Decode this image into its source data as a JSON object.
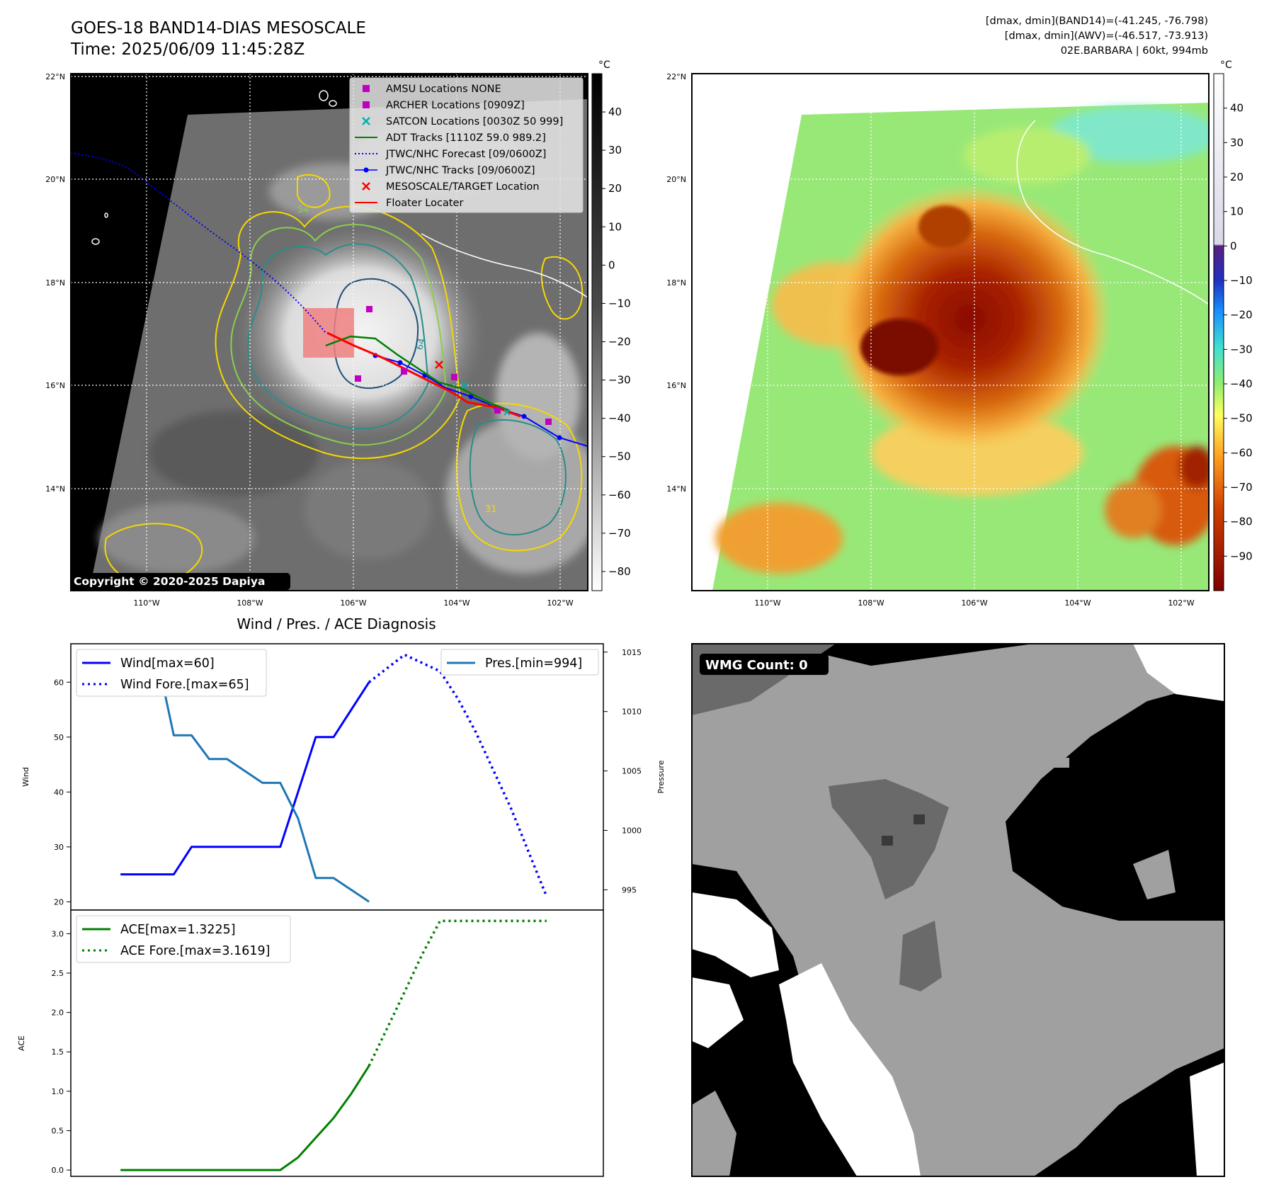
{
  "header": {
    "title_line1": "GOES-18 BAND14-DIAS MESOSCALE",
    "title_line2": "Time: 2025/06/09 11:45:28Z",
    "info_line1": "[dmax, dmin](BAND14)=(-41.245, -76.798)",
    "info_line2": "[dmax, dmin](AWV)=(-46.517, -73.913)",
    "info_line3": "02E.BARBARA | 60kt, 994mb"
  },
  "map_axes": {
    "lat_labels": [
      "22°N",
      "20°N",
      "18°N",
      "16°N",
      "14°N"
    ],
    "lon_labels": [
      "110°W",
      "108°W",
      "106°W",
      "104°W",
      "102°W"
    ],
    "lat_range": [
      12,
      22
    ],
    "lon_range": [
      -111.5,
      -101.5
    ]
  },
  "ir_panel": {
    "copyright": "Copyright © 2020-2025 Dapiya",
    "colorbar_unit": "°C",
    "colorbar_ticks": [
      "40",
      "30",
      "20",
      "10",
      "0",
      "−10",
      "−20",
      "−30",
      "−40",
      "−50",
      "−60",
      "−70",
      "−80"
    ],
    "colorbar_range": [
      -85,
      50
    ],
    "legend": [
      {
        "label": "AMSU Locations NONE",
        "marker": "square",
        "color": "#c000c0"
      },
      {
        "label": "ARCHER Locations [0909Z]",
        "marker": "square",
        "color": "#c000c0"
      },
      {
        "label": "SATCON Locations [0030Z 50 999]",
        "marker": "x",
        "color": "#00b0b0"
      },
      {
        "label": "ADT Tracks [1110Z 59.0 989.2]",
        "marker": "line",
        "color": "#008000"
      },
      {
        "label": "JTWC/NHC Forecast [09/0600Z]",
        "marker": "dotted",
        "color": "#0000ff"
      },
      {
        "label": "JTWC/NHC Tracks [09/0600Z]",
        "marker": "line-dot",
        "color": "#0000ff"
      },
      {
        "label": "MESOSCALE/TARGET Location",
        "marker": "x",
        "color": "#ff0000"
      },
      {
        "label": "Floater Locater",
        "marker": "line",
        "color": "#ff0000"
      }
    ],
    "contour_labels": [
      "64",
      "54",
      "31"
    ]
  },
  "awv_panel": {
    "colorbar_unit": "°C",
    "colorbar_ticks": [
      "40",
      "30",
      "20",
      "10",
      "0",
      "−10",
      "−20",
      "−30",
      "−40",
      "−50",
      "−60",
      "−70",
      "−80",
      "−90"
    ],
    "colorbar_range": [
      -100,
      50
    ]
  },
  "wind_chart": {
    "title": "Wind / Pres. / ACE Diagnosis",
    "ylabel_left": "Wind",
    "ylabel_right": "Pressure",
    "left_ticks": [
      "20",
      "30",
      "40",
      "50",
      "60"
    ],
    "right_ticks": [
      "995",
      "1000",
      "1005",
      "1010",
      "1015"
    ],
    "legend_left": [
      "Wind[max=60]",
      "Wind Fore.[max=65]"
    ],
    "legend_right": [
      "Pres.[min=994]"
    ]
  },
  "ace_chart": {
    "ylabel": "ACE",
    "ticks": [
      "0.0",
      "0.5",
      "1.0",
      "1.5",
      "2.0",
      "2.5",
      "3.0"
    ],
    "legend": [
      "ACE[max=1.3225]",
      "ACE Fore.[max=3.1619]"
    ]
  },
  "wmg_panel": {
    "badge": "WMG Count: 0"
  },
  "chart_data": [
    {
      "type": "line",
      "title": "Wind / Pres. / ACE Diagnosis",
      "ylabel": "Wind",
      "ylim": [
        18.5,
        67
      ],
      "x": [
        0,
        1,
        2,
        3,
        4,
        5,
        6,
        7,
        8,
        9,
        10,
        11,
        12,
        13,
        14,
        15,
        16,
        17,
        18,
        19,
        20,
        21,
        22,
        23,
        24
      ],
      "series": [
        {
          "name": "Wind[max=60]",
          "color": "#0000ff",
          "style": "solid",
          "axis": "left",
          "values": [
            25,
            25,
            25,
            25,
            30,
            30,
            30,
            30,
            30,
            30,
            40,
            50,
            50,
            55,
            60,
            null,
            null,
            null,
            null,
            null,
            null,
            null,
            null,
            null,
            null
          ]
        },
        {
          "name": "Wind Fore.[max=65]",
          "color": "#0000ff",
          "style": "dotted",
          "axis": "left",
          "values": [
            null,
            null,
            null,
            null,
            null,
            null,
            null,
            null,
            null,
            null,
            null,
            null,
            null,
            null,
            60,
            62.5,
            65,
            63.5,
            62,
            57,
            51,
            44,
            37,
            29,
            21
          ]
        },
        {
          "name": "Pres.[min=994]",
          "color": "#1f77b4",
          "style": "solid",
          "axis": "right",
          "ylabel": "Pressure",
          "ylim": [
            993.3,
            1015.7
          ],
          "values": [
            1015,
            1015,
            1015,
            1008,
            1008,
            1006,
            1006,
            1005,
            1004,
            1004,
            1001,
            996,
            996,
            995,
            994,
            null,
            null,
            null,
            null,
            null,
            null,
            null,
            null,
            null,
            null
          ]
        }
      ]
    },
    {
      "type": "line",
      "ylabel": "ACE",
      "ylim": [
        -0.08,
        3.3
      ],
      "x": [
        0,
        1,
        2,
        3,
        4,
        5,
        6,
        7,
        8,
        9,
        10,
        11,
        12,
        13,
        14,
        15,
        16,
        17,
        18,
        19,
        20,
        21,
        22,
        23,
        24
      ],
      "series": [
        {
          "name": "ACE[max=1.3225]",
          "color": "#008000",
          "style": "solid",
          "values": [
            0,
            0,
            0,
            0,
            0,
            0,
            0,
            0,
            0,
            0,
            0.16,
            0.41,
            0.66,
            0.97,
            1.3225,
            null,
            null,
            null,
            null,
            null,
            null,
            null,
            null,
            null,
            null
          ]
        },
        {
          "name": "ACE Fore.[max=3.1619]",
          "color": "#008000",
          "style": "dotted",
          "values": [
            null,
            null,
            null,
            null,
            null,
            null,
            null,
            null,
            null,
            null,
            null,
            null,
            null,
            null,
            1.3225,
            1.79,
            2.26,
            2.74,
            3.1619,
            3.1619,
            3.1619,
            3.1619,
            3.1619,
            3.1619,
            3.1619
          ]
        }
      ]
    }
  ]
}
